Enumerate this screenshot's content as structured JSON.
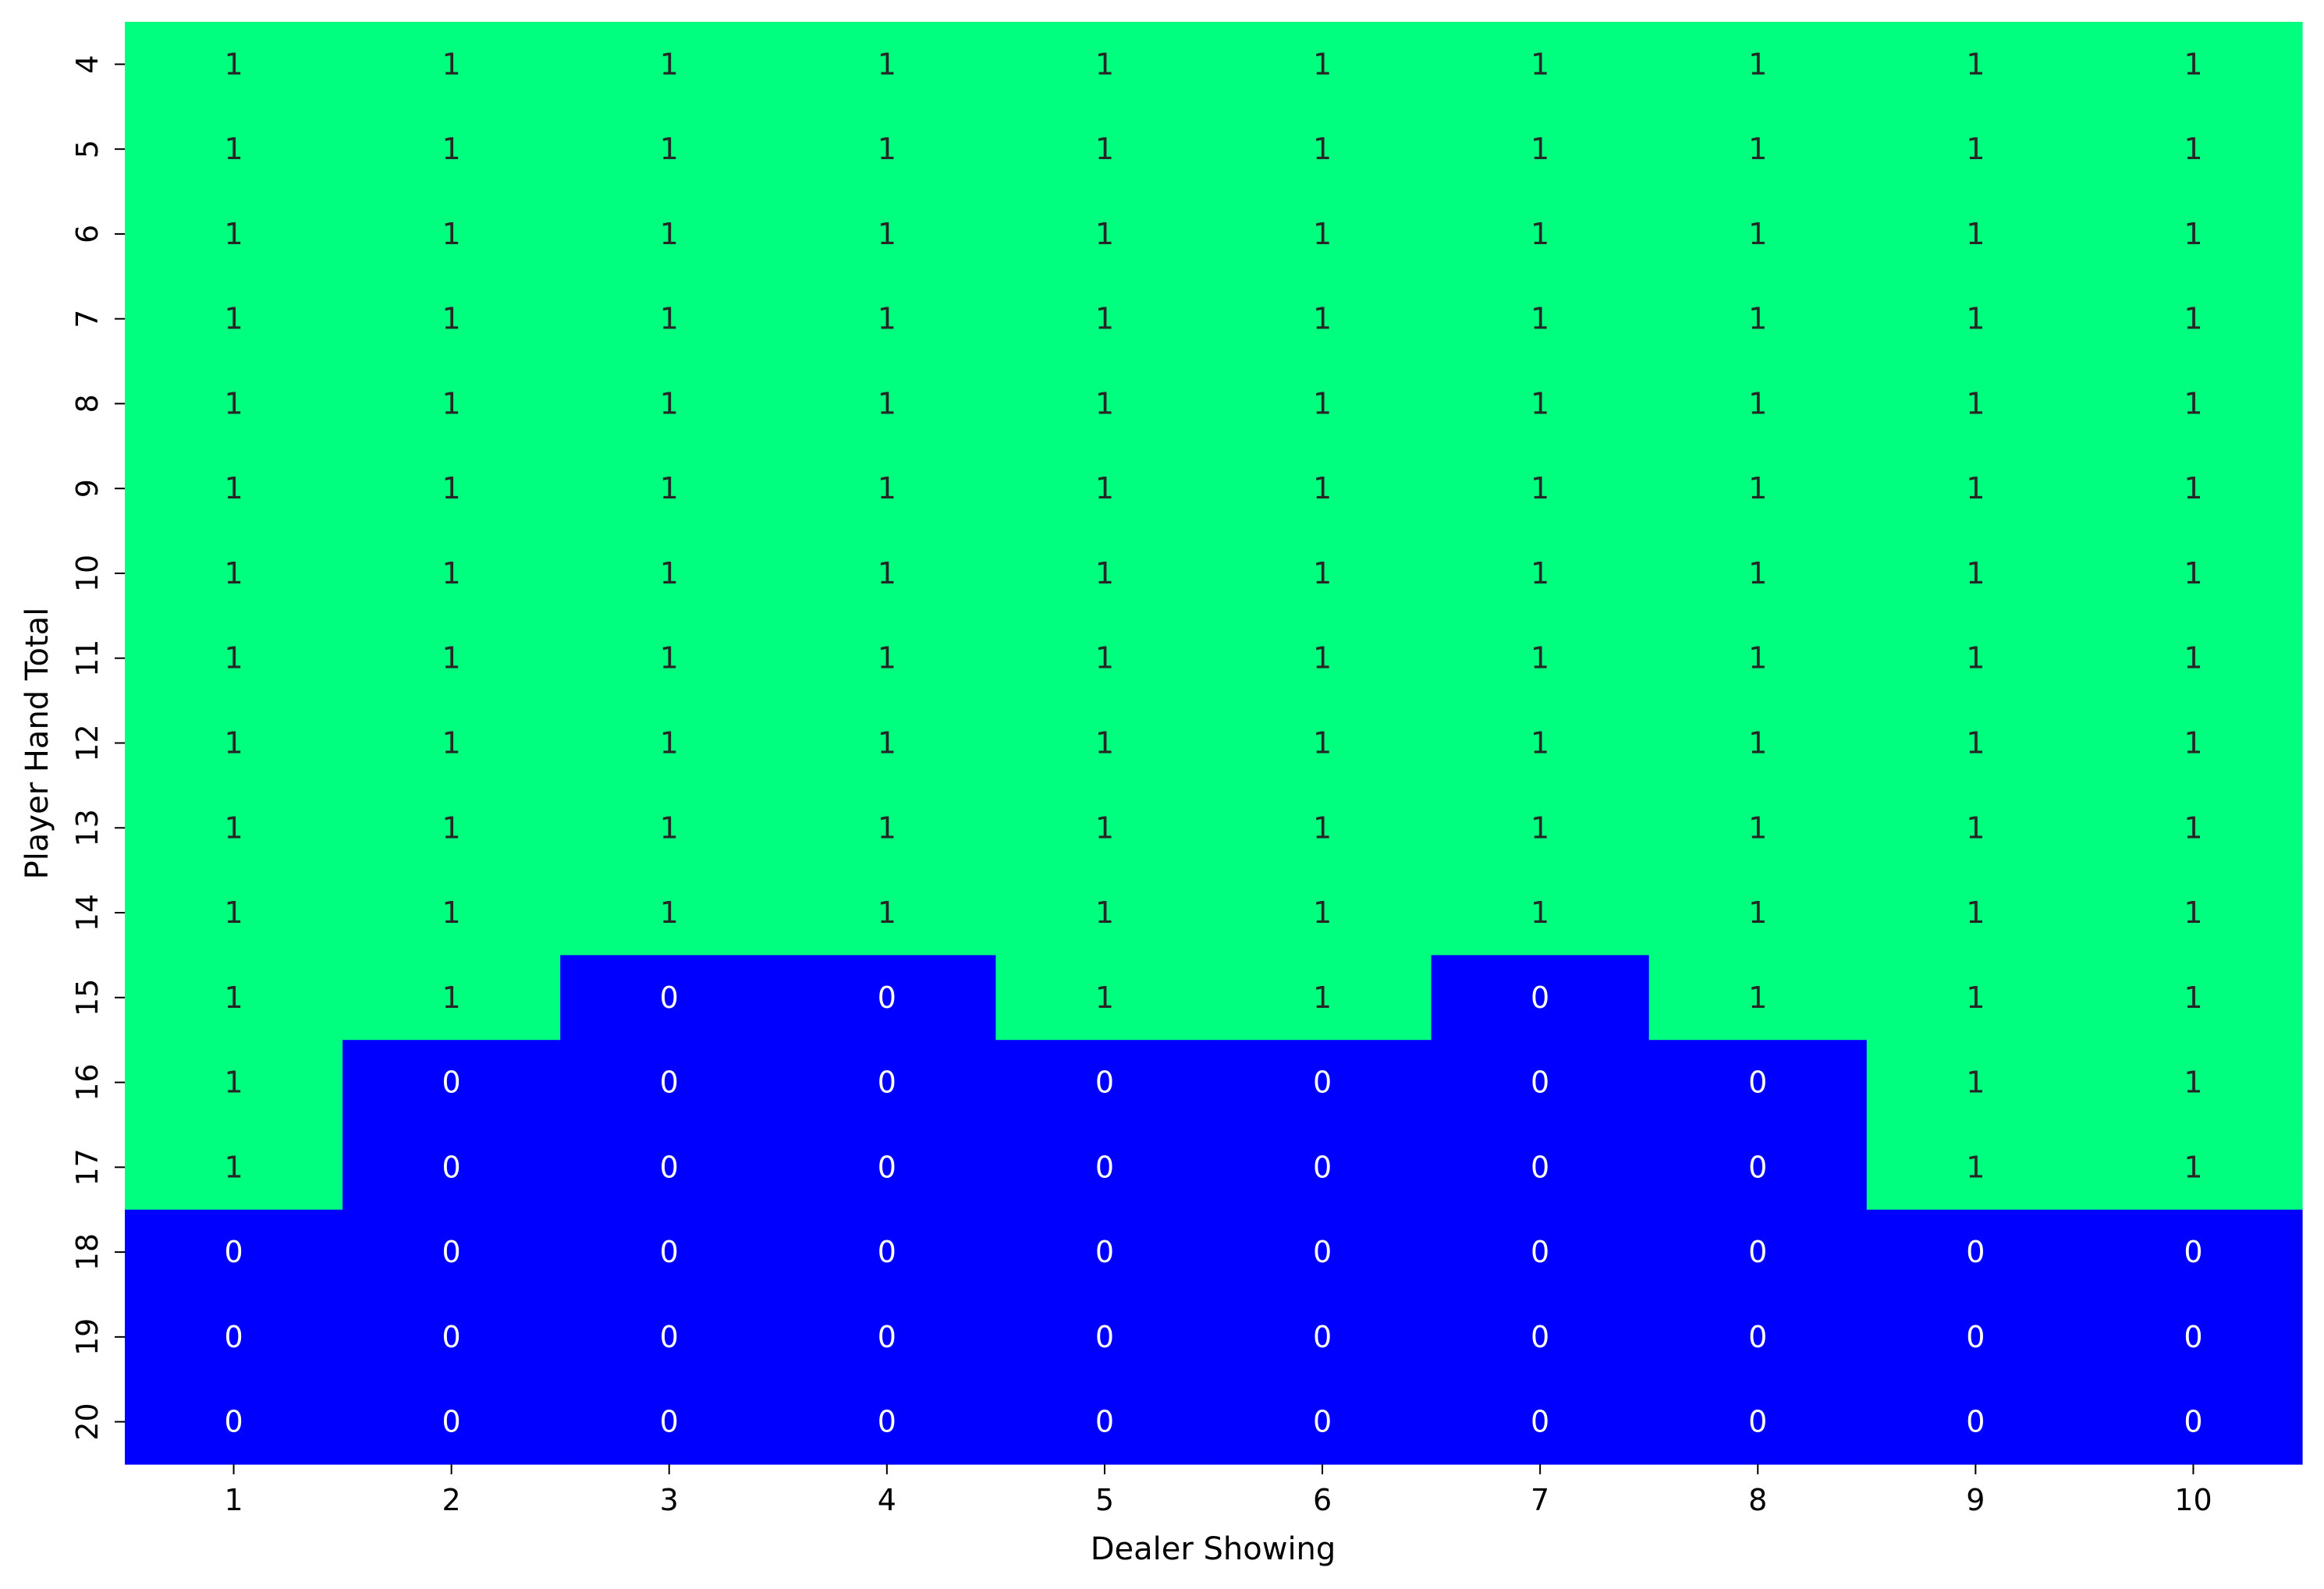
{
  "chart_data": {
    "type": "heatmap",
    "title": "",
    "xlabel": "Dealer Showing",
    "ylabel": "Player Hand Total",
    "x": [
      "1",
      "2",
      "3",
      "4",
      "5",
      "6",
      "7",
      "8",
      "9",
      "10"
    ],
    "y": [
      "4",
      "5",
      "6",
      "7",
      "8",
      "9",
      "10",
      "11",
      "12",
      "13",
      "14",
      "15",
      "16",
      "17",
      "18",
      "19",
      "20"
    ],
    "values": [
      [
        1,
        1,
        1,
        1,
        1,
        1,
        1,
        1,
        1,
        1
      ],
      [
        1,
        1,
        1,
        1,
        1,
        1,
        1,
        1,
        1,
        1
      ],
      [
        1,
        1,
        1,
        1,
        1,
        1,
        1,
        1,
        1,
        1
      ],
      [
        1,
        1,
        1,
        1,
        1,
        1,
        1,
        1,
        1,
        1
      ],
      [
        1,
        1,
        1,
        1,
        1,
        1,
        1,
        1,
        1,
        1
      ],
      [
        1,
        1,
        1,
        1,
        1,
        1,
        1,
        1,
        1,
        1
      ],
      [
        1,
        1,
        1,
        1,
        1,
        1,
        1,
        1,
        1,
        1
      ],
      [
        1,
        1,
        1,
        1,
        1,
        1,
        1,
        1,
        1,
        1
      ],
      [
        1,
        1,
        1,
        1,
        1,
        1,
        1,
        1,
        1,
        1
      ],
      [
        1,
        1,
        1,
        1,
        1,
        1,
        1,
        1,
        1,
        1
      ],
      [
        1,
        1,
        1,
        1,
        1,
        1,
        1,
        1,
        1,
        1
      ],
      [
        1,
        1,
        0,
        0,
        1,
        1,
        0,
        1,
        1,
        1
      ],
      [
        1,
        0,
        0,
        0,
        0,
        0,
        0,
        0,
        1,
        1
      ],
      [
        1,
        0,
        0,
        0,
        0,
        0,
        0,
        0,
        1,
        1
      ],
      [
        0,
        0,
        0,
        0,
        0,
        0,
        0,
        0,
        0,
        0
      ],
      [
        0,
        0,
        0,
        0,
        0,
        0,
        0,
        0,
        0,
        0
      ],
      [
        0,
        0,
        0,
        0,
        0,
        0,
        0,
        0,
        0,
        0
      ]
    ],
    "colors": {
      "1": "#00ff7f",
      "0": "#0000ff"
    },
    "annotation_colors": {
      "1": "#262626",
      "0": "#ffffff"
    },
    "grid": false,
    "colorbar": false,
    "legend": "none"
  }
}
